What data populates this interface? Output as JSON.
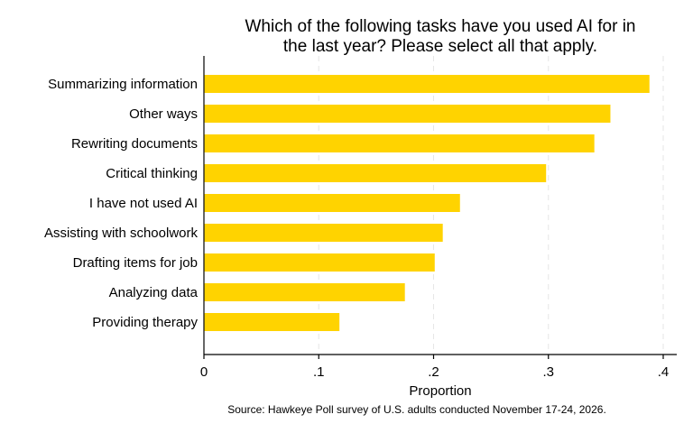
{
  "chart_data": {
    "type": "bar",
    "orientation": "horizontal",
    "title_lines": [
      "Which of the following tasks have you used AI for in",
      "the last year? Please select all that apply."
    ],
    "xlabel": "Proportion",
    "ylabel": "",
    "categories": [
      "Summarizing information",
      "Other ways",
      "Rewriting documents",
      "Critical thinking",
      "I have not used AI",
      "Assisting with schoolwork",
      "Drafting items for job",
      "Analyzing data",
      "Providing therapy"
    ],
    "values": [
      0.388,
      0.354,
      0.34,
      0.298,
      0.223,
      0.208,
      0.201,
      0.175,
      0.118
    ],
    "xlim": [
      0,
      0.4
    ],
    "xticks": [
      {
        "value": 0,
        "label": "0"
      },
      {
        "value": 0.1,
        "label": ".1"
      },
      {
        "value": 0.2,
        "label": ".2"
      },
      {
        "value": 0.3,
        "label": ".3"
      },
      {
        "value": 0.4,
        "label": ".4"
      }
    ],
    "grid": true,
    "legend": "none",
    "bar_color": "#FFD300",
    "note": "Source: Hawkeye Poll survey of U.S. adults conducted November 17-24, 2026."
  }
}
